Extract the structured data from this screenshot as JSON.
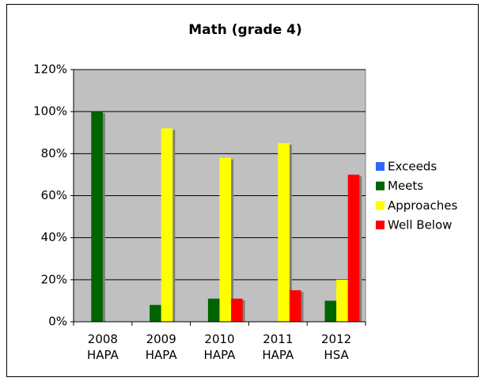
{
  "chart_data": {
    "type": "bar",
    "title": "Math (grade 4)",
    "categories": [
      "2008 HAPA",
      "2009 HAPA",
      "2010 HAPA",
      "2011 HAPA",
      "2012 HSA"
    ],
    "series": [
      {
        "name": "Exceeds",
        "color": "#3366ff",
        "values": [
          0,
          0,
          0,
          0,
          0
        ]
      },
      {
        "name": "Meets",
        "color": "#006400",
        "values": [
          100,
          8,
          11,
          0,
          10
        ]
      },
      {
        "name": "Approaches",
        "color": "#ffff00",
        "values": [
          0,
          92,
          78,
          85,
          20
        ]
      },
      {
        "name": "Well Below",
        "color": "#ff0000",
        "values": [
          0,
          0,
          11,
          15,
          70
        ]
      }
    ],
    "ylim": [
      0,
      120
    ],
    "yticks": [
      {
        "value": 0,
        "label": "0%"
      },
      {
        "value": 20,
        "label": "20%"
      },
      {
        "value": 40,
        "label": "40%"
      },
      {
        "value": 60,
        "label": "60%"
      },
      {
        "value": 80,
        "label": "80%"
      },
      {
        "value": 100,
        "label": "100%"
      },
      {
        "value": 120,
        "label": "120%"
      }
    ],
    "grid": true,
    "legend": "right"
  }
}
